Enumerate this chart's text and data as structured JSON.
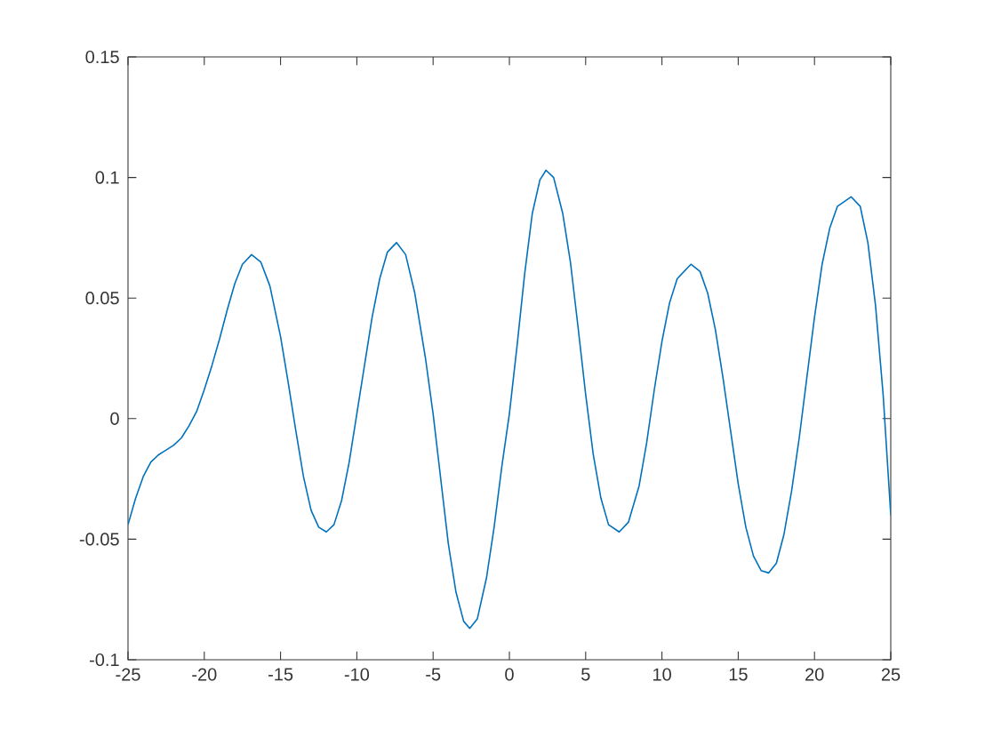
{
  "chart_data": {
    "type": "line",
    "xlim": [
      -25,
      25
    ],
    "ylim": [
      -0.1,
      0.15
    ],
    "xticks": [
      -25,
      -20,
      -15,
      -10,
      -5,
      0,
      5,
      10,
      15,
      20,
      25
    ],
    "yticks": [
      -0.1,
      -0.05,
      0,
      0.05,
      0.1,
      0.15
    ],
    "series": [
      {
        "color": "#0072bd",
        "x": [
          -25,
          -24.5,
          -24,
          -23.5,
          -23,
          -22.5,
          -22,
          -21.5,
          -21,
          -20.5,
          -20,
          -19.5,
          -19,
          -18.5,
          -18,
          -17.5,
          -16.9,
          -16.3,
          -15.7,
          -15,
          -14.5,
          -14,
          -13.5,
          -13,
          -12.5,
          -12,
          -11.5,
          -11,
          -10.5,
          -10,
          -9.5,
          -9,
          -8.5,
          -8,
          -7.4,
          -6.8,
          -6.2,
          -5.5,
          -5,
          -4.5,
          -4,
          -3.5,
          -3,
          -2.6,
          -2.1,
          -1.5,
          -1,
          -0.5,
          0,
          0.5,
          1,
          1.5,
          2,
          2.4,
          2.9,
          3.5,
          4,
          4.5,
          5,
          5.5,
          6,
          6.5,
          7.2,
          7.8,
          8.5,
          9,
          9.5,
          10,
          10.5,
          11,
          11.9,
          12.5,
          13,
          13.5,
          14,
          14.5,
          15,
          15.5,
          16,
          16.5,
          17,
          17.5,
          18,
          18.5,
          19,
          19.5,
          20,
          20.5,
          21,
          21.5,
          22.4,
          23,
          23.5,
          24,
          24.5,
          25
        ],
        "values": [
          -0.044,
          -0.033,
          -0.024,
          -0.018,
          -0.015,
          -0.013,
          -0.011,
          -0.008,
          -0.003,
          0.003,
          0.012,
          0.022,
          0.033,
          0.045,
          0.056,
          0.064,
          0.068,
          0.065,
          0.055,
          0.034,
          0.015,
          -0.005,
          -0.024,
          -0.038,
          -0.045,
          -0.047,
          -0.044,
          -0.034,
          -0.018,
          0.002,
          0.022,
          0.042,
          0.058,
          0.069,
          0.073,
          0.068,
          0.052,
          0.025,
          0.002,
          -0.025,
          -0.052,
          -0.072,
          -0.084,
          -0.087,
          -0.083,
          -0.066,
          -0.045,
          -0.02,
          0.002,
          0.03,
          0.06,
          0.085,
          0.099,
          0.103,
          0.1,
          0.085,
          0.065,
          0.038,
          0.01,
          -0.015,
          -0.033,
          -0.044,
          -0.047,
          -0.043,
          -0.028,
          -0.01,
          0.012,
          0.032,
          0.048,
          0.058,
          0.064,
          0.061,
          0.052,
          0.037,
          0.017,
          -0.005,
          -0.027,
          -0.045,
          -0.057,
          -0.063,
          -0.064,
          -0.06,
          -0.048,
          -0.03,
          -0.008,
          0.017,
          0.042,
          0.064,
          0.079,
          0.088,
          0.092,
          0.088,
          0.073,
          0.047,
          0.01,
          -0.04
        ]
      }
    ]
  }
}
